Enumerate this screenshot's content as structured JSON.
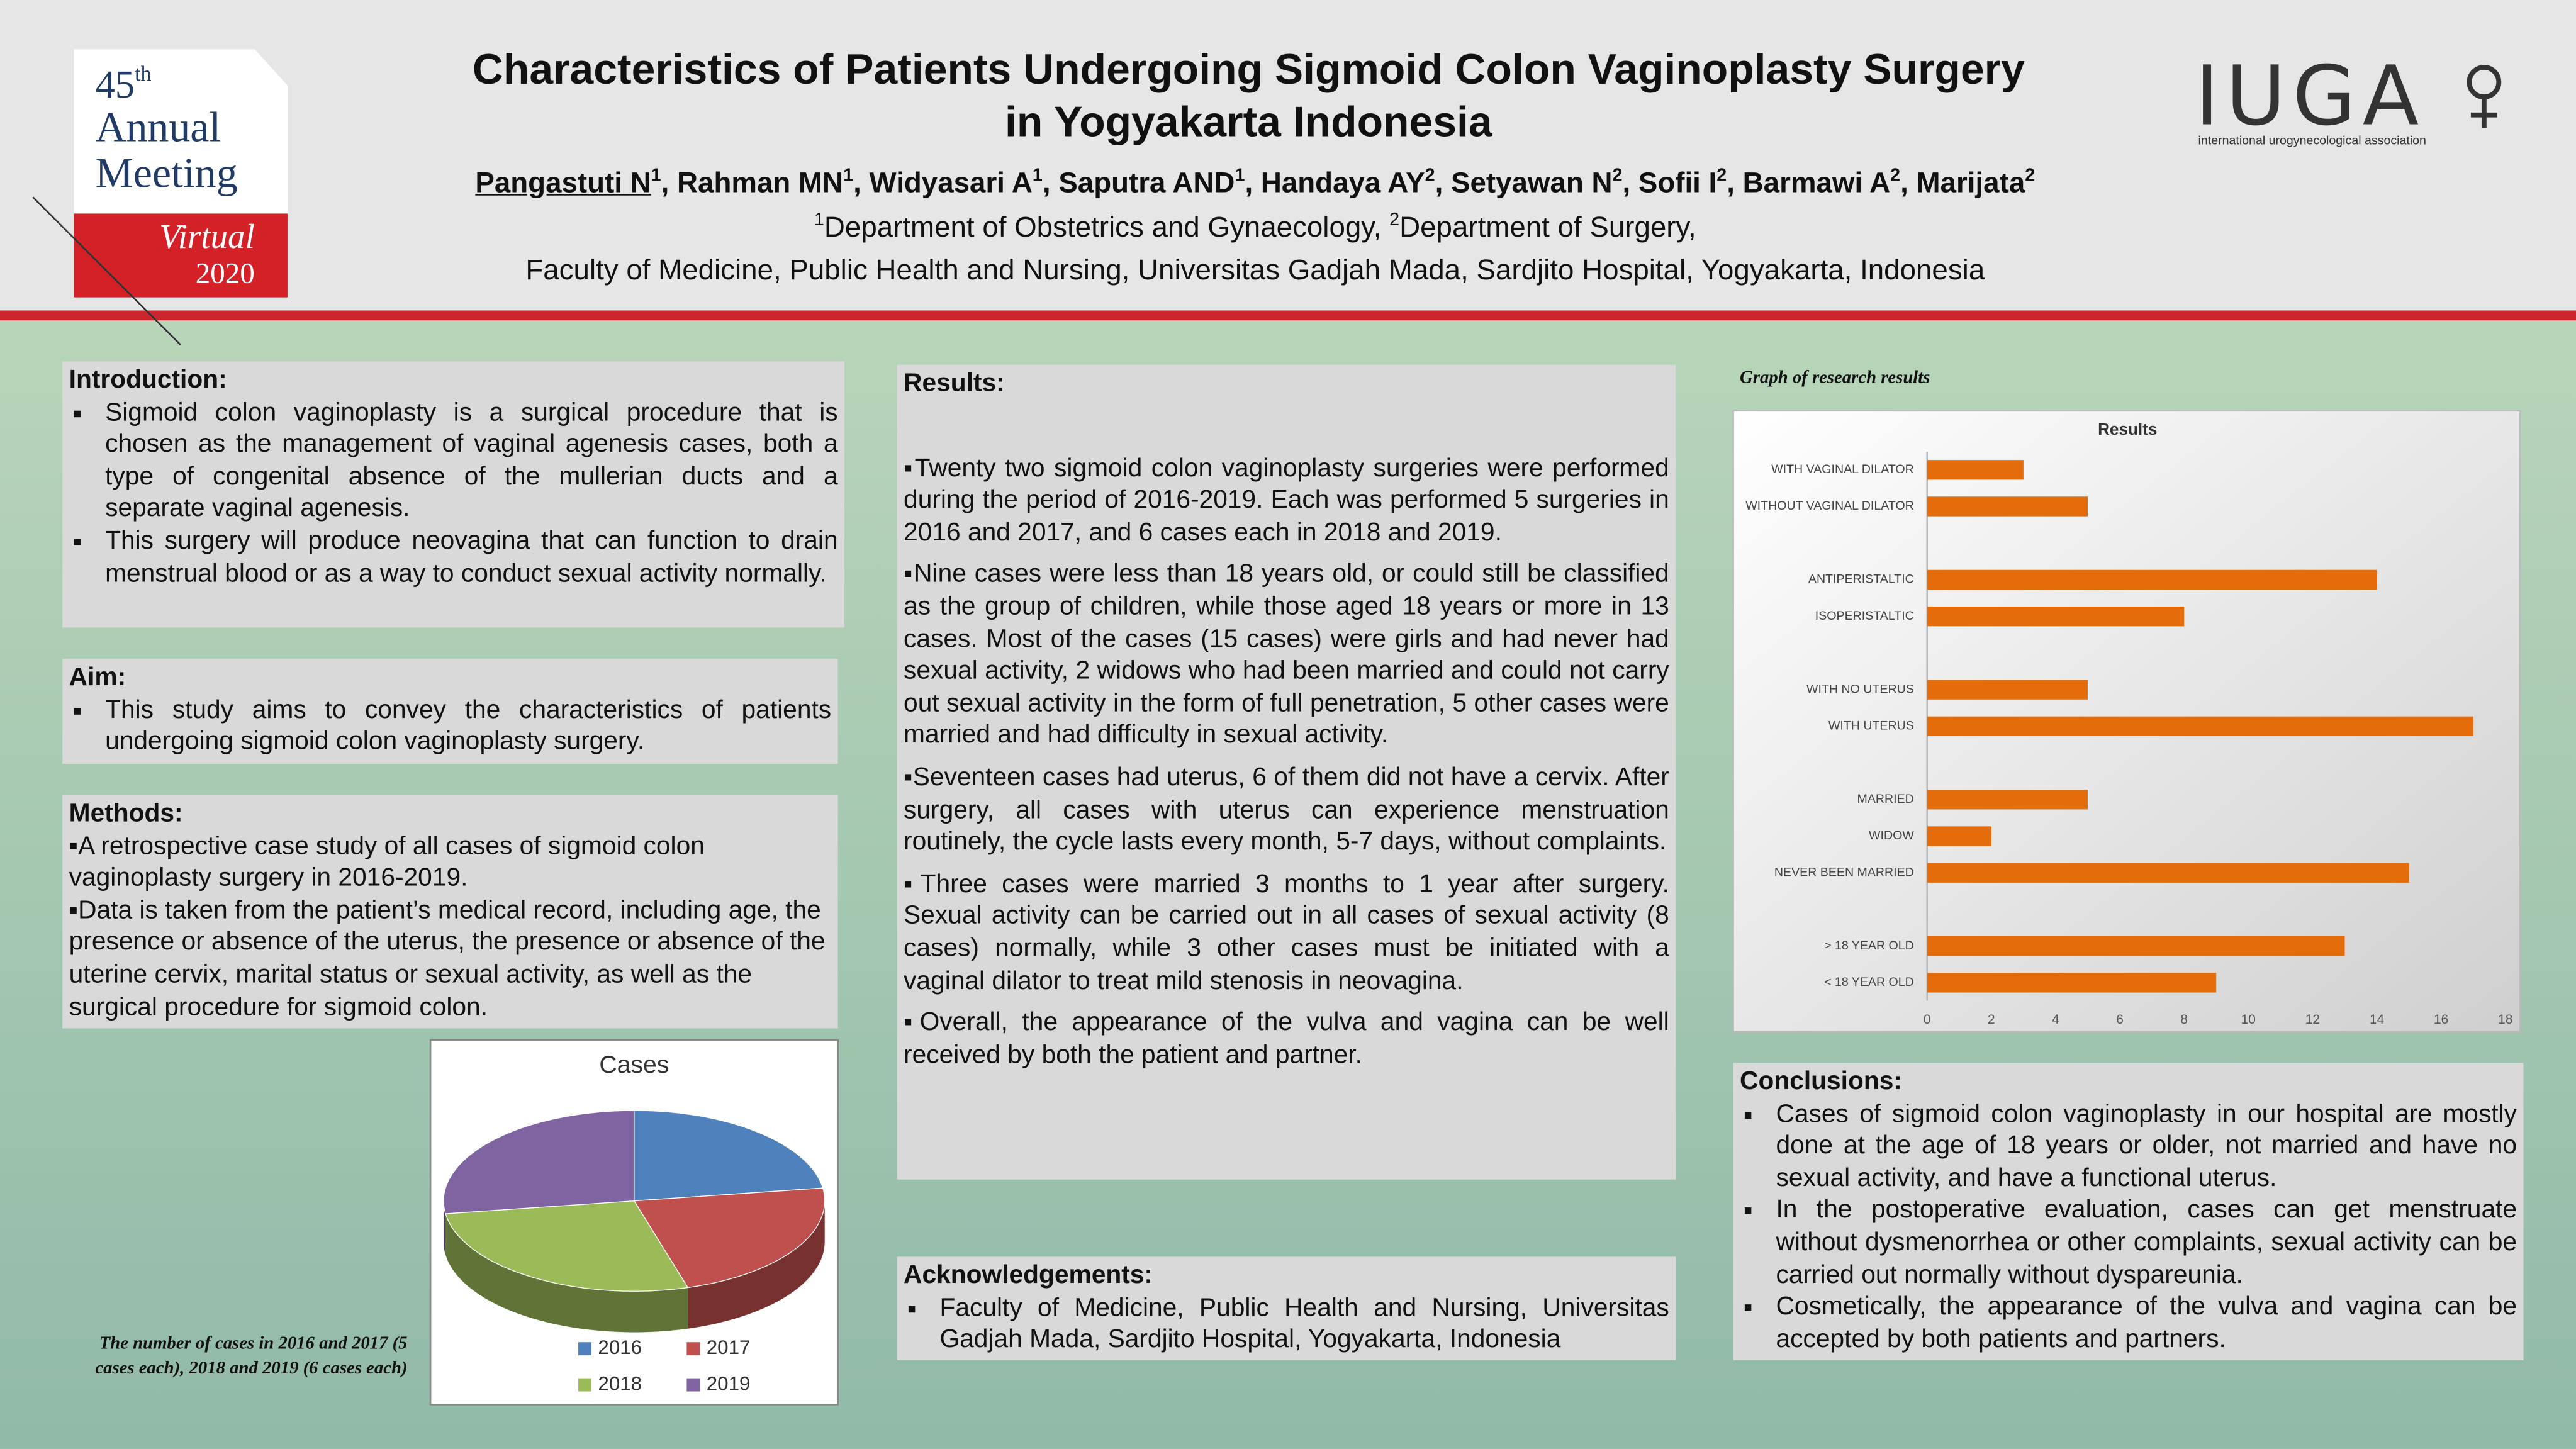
{
  "meeting_logo": {
    "number": "45",
    "suffix": "th",
    "line2": "Annual",
    "line3": "Meeting",
    "line4": "Virtual",
    "line5": "2020"
  },
  "iuga_logo": {
    "name": "IUGA",
    "full_name": "international urogynecological association"
  },
  "header": {
    "title_line1": "Characteristics of Patients Undergoing Sigmoid Colon Vaginoplasty Surgery",
    "title_line2": "in Yogyakarta Indonesia",
    "authors": [
      {
        "text": "Pangastuti N",
        "sup": "1"
      },
      {
        "text": ", Rahman MN",
        "sup": "1"
      },
      {
        "text": ", Widyasari A",
        "sup": "1"
      },
      {
        "text": ", Saputra AND",
        "sup": "1"
      },
      {
        "text": ", Handaya AY",
        "sup": "2"
      },
      {
        "text": ", Setyawan N",
        "sup": "2"
      },
      {
        "text": ", Sofii I",
        "sup": "2"
      },
      {
        "text": ", Barmawi A",
        "sup": "2"
      },
      {
        "text": ", Marijata",
        "sup": "2"
      }
    ],
    "affiliation_line1": [
      {
        "sup": "1",
        "text": "Department of Obstetrics and Gynaecology, "
      },
      {
        "sup": "2",
        "text": "Department of Surgery,"
      }
    ],
    "affiliation_line2": "Faculty of Medicine, Public Health and Nursing, Universitas Gadjah Mada, Sardjito Hospital, Yogyakarta, Indonesia"
  },
  "introduction": {
    "heading": "Introduction:",
    "items": [
      "Sigmoid colon vaginoplasty is a surgical procedure that is chosen as the management of vaginal agenesis cases, both a type of congenital absence of the mullerian ducts and a separate vaginal agenesis.",
      "This surgery will produce neovagina that can function to drain menstrual blood or as a way to conduct sexual activity normally."
    ]
  },
  "aim": {
    "heading": "Aim:",
    "items": [
      "This study aims to convey the characteristics of patients undergoing sigmoid colon vaginoplasty surgery."
    ]
  },
  "methods": {
    "heading": "Methods:",
    "paragraphs": [
      "A retrospective case study of all cases of sigmoid colon vaginoplasty surgery in 2016-2019.",
      "Data is taken from the patient’s medical record, including age, the presence or absence of the uterus, the presence or absence of the uterine cervix, marital status or sexual activity, as well as the surgical procedure for sigmoid colon."
    ]
  },
  "results": {
    "heading": "Results:",
    "paragraphs": [
      "Twenty two sigmoid colon vaginoplasty surgeries were performed during the period of 2016-2019. Each was performed 5 surgeries in 2016 and 2017, and 6 cases each in 2018 and 2019.",
      "Nine cases were less than 18 years old, or could still be classified as the group of children, while those aged 18 years or more in 13 cases. Most of the cases (15 cases) were girls and had never had sexual activity, 2 widows who had been married and could not carry out sexual activity in the form of full penetration, 5 other cases were married and had difficulty in sexual activity.",
      "Seventeen cases had uterus, 6 of them did not have a cervix. After surgery, all cases with uterus can experience menstruation routinely, the cycle lasts every month, 5-7 days, without complaints.",
      "Three cases were married 3 months to 1 year after surgery. Sexual activity can be carried out in all cases of sexual activity (8 cases) normally, while 3 other cases must be initiated with a vaginal dilator to treat mild stenosis in neovagina.",
      "Overall, the appearance of the vulva and vagina can be well received by both the patient and partner."
    ]
  },
  "acknowledgements": {
    "heading": "Acknowledgements:",
    "items": [
      "Faculty of Medicine, Public Health and Nursing, Universitas Gadjah Mada, Sardjito Hospital, Yogyakarta, Indonesia"
    ]
  },
  "conclusions": {
    "heading": "Conclusions:",
    "items": [
      "Cases of sigmoid colon vaginoplasty in our hospital are mostly done at the age of 18 years or older, not married and have no sexual activity, and have a functional uterus.",
      "In the postoperative evaluation, cases can get menstruate without dysmenorrhea or other complaints, sexual activity can be carried out normally without dyspareunia.",
      "Cosmetically, the appearance of the vulva and vagina can be accepted by both patients and partners."
    ]
  },
  "graph_caption": "Graph of research results",
  "pie_caption": "The number of cases in 2016 and 2017 (5 cases each), 2018 and 2019 (6 cases each)",
  "chart_data": [
    {
      "type": "bar",
      "orientation": "horizontal",
      "title": "Results",
      "categories": [
        "WITH VAGINAL DILATOR",
        "WITHOUT VAGINAL DILATOR",
        null,
        "ANTIPERISTALTIC",
        "ISOPERISTALTIC",
        null,
        "WITH NO UTERUS",
        "WITH UTERUS",
        null,
        "MARRIED",
        "WIDOW",
        "NEVER BEEN MARRIED",
        null,
        "> 18 YEAR OLD",
        "< 18 YEAR OLD"
      ],
      "values": [
        3,
        5,
        null,
        14,
        8,
        null,
        5,
        17,
        null,
        5,
        2,
        15,
        null,
        13,
        9
      ],
      "color": "#e46c0a",
      "xlim": [
        0,
        18
      ],
      "xticks": [
        0,
        2,
        4,
        6,
        8,
        10,
        12,
        14,
        16,
        18
      ]
    },
    {
      "type": "pie",
      "title": "Cases",
      "categories": [
        "2016",
        "2017",
        "2018",
        "2019"
      ],
      "values": [
        5,
        5,
        6,
        6
      ],
      "colors": [
        "#4f81bd",
        "#c0504d",
        "#9bbb59",
        "#8064a2"
      ]
    }
  ]
}
